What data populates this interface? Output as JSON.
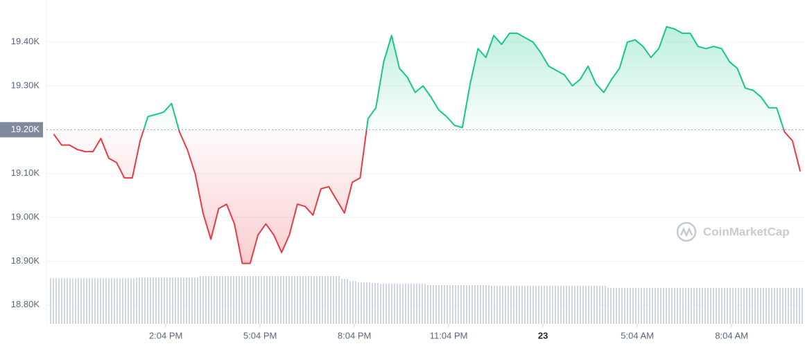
{
  "chart_data": {
    "type": "line",
    "x": [
      10.5,
      10.75,
      11,
      11.25,
      11.5,
      11.75,
      12,
      12.25,
      12.5,
      12.75,
      13,
      13.25,
      13.5,
      13.75,
      14,
      14.25,
      14.5,
      14.75,
      15,
      15.25,
      15.5,
      15.75,
      16,
      16.25,
      16.5,
      16.75,
      17,
      17.25,
      17.5,
      17.75,
      18,
      18.25,
      18.5,
      18.75,
      19,
      19.25,
      19.5,
      19.75,
      20,
      20.25,
      20.5,
      20.75,
      21,
      21.25,
      21.5,
      21.75,
      22,
      22.25,
      22.5,
      22.75,
      23,
      23.25,
      23.5,
      23.75,
      24,
      24.25,
      24.5,
      24.75,
      25,
      25.25,
      25.5,
      25.75,
      26,
      26.25,
      26.5,
      26.75,
      27,
      27.25,
      27.5,
      27.75,
      28,
      28.25,
      28.5,
      28.75,
      29,
      29.25,
      29.5,
      29.75,
      30,
      30.25,
      30.5,
      30.75,
      31,
      31.25,
      31.5,
      31.75,
      32,
      32.25,
      32.5,
      32.75,
      33,
      33.25,
      33.5,
      33.75,
      34,
      34.25
    ],
    "series": [
      {
        "color": "#16c784",
        "values": [
          19190,
          19165,
          19165,
          19155,
          19150,
          19150,
          19180,
          19135,
          19125,
          19090,
          19090,
          19175,
          19230,
          19235,
          19240,
          19260,
          19195,
          19155,
          19100,
          19010,
          18950,
          19020,
          19030,
          18985,
          18895,
          18895,
          18960,
          18985,
          18960,
          18920,
          18960,
          19030,
          19025,
          19005,
          19065,
          19070,
          19040,
          19010,
          19080,
          19090,
          19225,
          19250,
          19355,
          19415,
          19340,
          19320,
          19285,
          19300,
          19275,
          19245,
          19230,
          19210,
          19205,
          19305,
          19385,
          19365,
          19415,
          19395,
          19420,
          19420,
          19410,
          19400,
          19375,
          19345,
          19335,
          19325,
          19300,
          19315,
          19345,
          19305,
          19285,
          19315,
          19340,
          19400,
          19405,
          19390,
          19365,
          19385,
          19435,
          19430,
          19420,
          19420,
          19390,
          19385,
          19390,
          19385,
          19355,
          19340,
          19295,
          19290,
          19275,
          19250,
          19250,
          19195,
          19175,
          19105
        ]
      }
    ],
    "down_color": "#ea3943",
    "volume": [
      66,
      66,
      66,
      66,
      66,
      66,
      66,
      66,
      66,
      66,
      66,
      67,
      67,
      67,
      67,
      67,
      67,
      67,
      67,
      69,
      69,
      69,
      69,
      69,
      69,
      69,
      69,
      69,
      69,
      69,
      69,
      69,
      69,
      69,
      69,
      69,
      69,
      65,
      62,
      60,
      60,
      59,
      58,
      58,
      58,
      58,
      58,
      58,
      56,
      56,
      56,
      56,
      56,
      56,
      56,
      56,
      55,
      55,
      55,
      55,
      55,
      55,
      55,
      55,
      55,
      55,
      55,
      55,
      55,
      55,
      55,
      52,
      52,
      52,
      52,
      52,
      52,
      52,
      52,
      52,
      52,
      52,
      52,
      52,
      52,
      52,
      52,
      52,
      52,
      52,
      52,
      52,
      52,
      52,
      52,
      52
    ],
    "volume_color": "#cfd6e4",
    "xlim": [
      10.27,
      34.38
    ],
    "ylim": [
      18757,
      19496
    ],
    "xticks": [
      {
        "value": 14.067,
        "label": "2:04 PM"
      },
      {
        "value": 17.067,
        "label": "5:04 PM"
      },
      {
        "value": 20.067,
        "label": "8:04 PM"
      },
      {
        "value": 23.067,
        "label": "11:04 PM"
      },
      {
        "value": 26.067,
        "label": "23"
      },
      {
        "value": 29.067,
        "label": "5:04 AM"
      },
      {
        "value": 32.067,
        "label": "8:04 AM"
      }
    ],
    "yticks": [
      {
        "value": 18800,
        "label": "18.80K"
      },
      {
        "value": 18900,
        "label": "18.90K"
      },
      {
        "value": 19000,
        "label": "19.00K"
      },
      {
        "value": 19100,
        "label": "19.10K"
      },
      {
        "value": 19300,
        "label": "19.30K"
      },
      {
        "value": 19400,
        "label": "19.40K"
      }
    ],
    "reference": {
      "value": 19200,
      "label": "19.20K"
    },
    "grid": true,
    "watermark": "CoinMarketCap"
  }
}
